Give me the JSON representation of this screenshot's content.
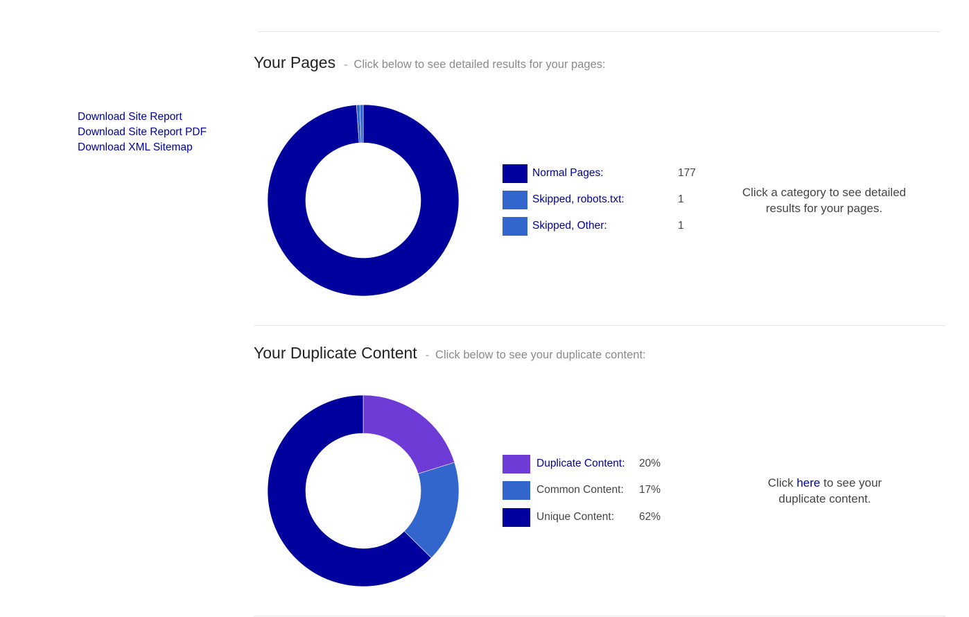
{
  "sidebar": {
    "links": [
      "Download Site Report",
      "Download Site Report PDF",
      "Download XML Sitemap"
    ]
  },
  "pages_section": {
    "title": "Your Pages",
    "separator": "-",
    "subtitle": "Click below to see detailed results for your pages:",
    "note": "Click a category to see detailed results for your pages."
  },
  "duplicate_section": {
    "title": "Your Duplicate Content",
    "separator": "-",
    "subtitle": "Click below to see your duplicate content:",
    "note_prefix": "Click ",
    "note_link": "here",
    "note_suffix": " to see your duplicate content."
  },
  "colors": {
    "navy": "#00009c",
    "blue": "#3366cc",
    "purple": "#6f3bd6",
    "link": "#00009c"
  },
  "chart_data": [
    {
      "type": "pie",
      "categories": [
        "Normal Pages:",
        "Skipped, robots.txt:",
        "Skipped, Other:"
      ],
      "values": [
        177,
        1,
        1
      ],
      "value_labels": [
        "177",
        "1",
        "1"
      ],
      "colors": [
        "#00009c",
        "#3366cc",
        "#3366cc"
      ],
      "donut": true
    },
    {
      "type": "pie",
      "categories": [
        "Duplicate Content:",
        "Common Content:",
        "Unique Content:"
      ],
      "values": [
        20,
        17,
        62
      ],
      "value_labels": [
        "20%",
        "17%",
        "62%"
      ],
      "colors": [
        "#6f3bd6",
        "#3366cc",
        "#00009c"
      ],
      "donut": true
    }
  ]
}
